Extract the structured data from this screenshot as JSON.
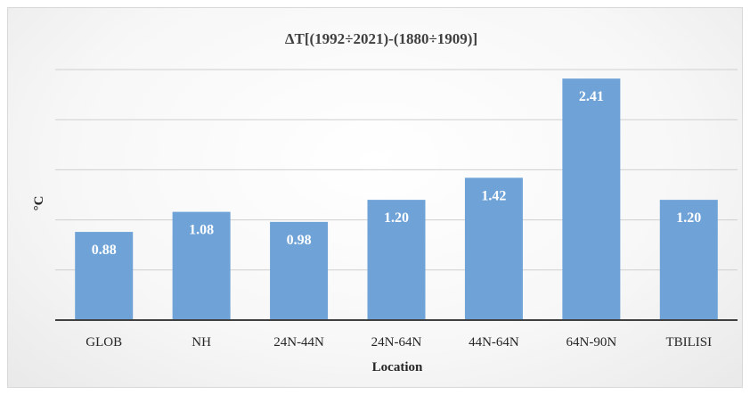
{
  "chart_data": {
    "type": "bar",
    "title": "ΔT[(1992÷2021)-(1880÷1909)]",
    "xlabel": "Location",
    "ylabel": "°C",
    "categories": [
      "GLOB",
      "NH",
      "24N-44N",
      "24N-64N",
      "44N-64N",
      "64N-90N",
      "TBILISI"
    ],
    "values": [
      0.88,
      1.08,
      0.98,
      1.2,
      1.42,
      2.41,
      1.2
    ],
    "value_labels": [
      "0.88",
      "1.08",
      "0.98",
      "1.20",
      "1.42",
      "2.41",
      "1.20"
    ],
    "ylim": [
      0,
      2.5
    ],
    "grid": true,
    "y_tick_labels_shown": false,
    "legend": "none",
    "bar_color": "#6fa3d8",
    "axis_color": "#404040",
    "grid_color": "#cfcfcf"
  }
}
